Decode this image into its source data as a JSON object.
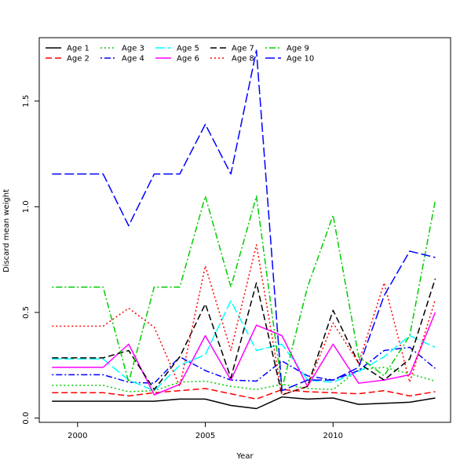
{
  "chart_data": {
    "type": "line",
    "title": "",
    "xlabel": "Year",
    "ylabel": "Discard mean weight",
    "xlim": [
      1998.5,
      2014.6
    ],
    "ylim": [
      -0.02,
      1.8
    ],
    "x_ticks": [
      2000,
      2005,
      2010
    ],
    "x_tick_labels": [
      "2000",
      "2005",
      "2010"
    ],
    "y_ticks": [
      0.0,
      0.5,
      1.0,
      1.5
    ],
    "y_tick_labels": [
      "0.0",
      "0.5",
      "1.0",
      "1.5"
    ],
    "grid": false,
    "legend_position": "top-left",
    "x": [
      1999,
      2000,
      2001,
      2002,
      2003,
      2004,
      2005,
      2006,
      2007,
      2008,
      2009,
      2010,
      2011,
      2012,
      2013,
      2014
    ],
    "series": [
      {
        "name": "Age 1",
        "color": "#000000",
        "dash": "solid",
        "values": [
          0.08,
          0.08,
          0.08,
          0.08,
          0.08,
          0.09,
          0.09,
          0.06,
          0.045,
          0.1,
          0.09,
          0.095,
          0.065,
          0.07,
          0.075,
          0.095
        ]
      },
      {
        "name": "Age 2",
        "color": "#FF0000",
        "dash": "dashed",
        "values": [
          0.12,
          0.12,
          0.12,
          0.105,
          0.12,
          0.13,
          0.14,
          0.115,
          0.09,
          0.135,
          0.125,
          0.12,
          0.115,
          0.13,
          0.105,
          0.125
        ]
      },
      {
        "name": "Age 3",
        "color": "#00CD00",
        "dash": "dotted",
        "values": [
          0.155,
          0.155,
          0.155,
          0.125,
          0.13,
          0.17,
          0.175,
          0.15,
          0.135,
          0.16,
          0.14,
          0.135,
          0.23,
          0.24,
          0.21,
          0.175
        ]
      },
      {
        "name": "Age 4",
        "color": "#0000FF",
        "dash": "dotdash",
        "values": [
          0.205,
          0.205,
          0.205,
          0.17,
          0.165,
          0.29,
          0.225,
          0.18,
          0.175,
          0.27,
          0.2,
          0.18,
          0.225,
          0.32,
          0.335,
          0.235
        ]
      },
      {
        "name": "Age 5",
        "color": "#00FFFF",
        "dash": "longdash",
        "values": [
          0.28,
          0.28,
          0.28,
          0.18,
          0.13,
          0.25,
          0.3,
          0.555,
          0.32,
          0.35,
          0.18,
          0.17,
          0.22,
          0.29,
          0.39,
          0.335
        ]
      },
      {
        "name": "Age 6",
        "color": "#FF00FF",
        "dash": "solid",
        "values": [
          0.24,
          0.24,
          0.24,
          0.35,
          0.11,
          0.16,
          0.39,
          0.18,
          0.44,
          0.39,
          0.15,
          0.35,
          0.165,
          0.18,
          0.205,
          0.5
        ]
      },
      {
        "name": "Age 7",
        "color": "#000000",
        "dash": "dashed",
        "values": [
          0.285,
          0.285,
          0.285,
          0.32,
          0.135,
          0.29,
          0.54,
          0.19,
          0.64,
          0.11,
          0.15,
          0.51,
          0.26,
          0.18,
          0.28,
          0.66
        ]
      },
      {
        "name": "Age 8",
        "color": "#FF0000",
        "dash": "dotted",
        "values": [
          0.435,
          0.435,
          0.435,
          0.52,
          0.43,
          0.15,
          0.72,
          0.32,
          0.82,
          0.11,
          0.15,
          0.45,
          0.26,
          0.64,
          0.17,
          0.56
        ]
      },
      {
        "name": "Age 9",
        "color": "#00CD00",
        "dash": "dotdash",
        "values": [
          0.62,
          0.62,
          0.62,
          0.17,
          0.62,
          0.62,
          1.05,
          0.62,
          1.05,
          0.14,
          0.62,
          0.96,
          0.29,
          0.2,
          0.39,
          1.03
        ]
      },
      {
        "name": "Age 10",
        "color": "#0000FF",
        "dash": "longdash",
        "values": [
          1.155,
          1.155,
          1.155,
          0.91,
          1.155,
          1.155,
          1.39,
          1.155,
          1.74,
          0.13,
          0.18,
          0.18,
          0.24,
          0.58,
          0.79,
          0.76
        ]
      }
    ]
  }
}
